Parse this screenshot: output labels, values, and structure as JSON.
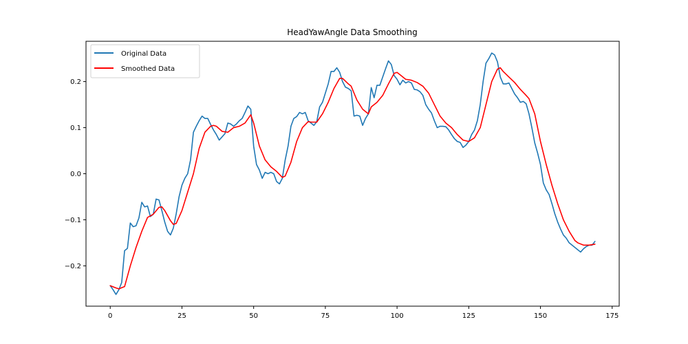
{
  "chart_data": {
    "type": "line",
    "title": "HeadYawAngle Data Smoothing",
    "xlabel": "",
    "ylabel": "",
    "xlim": [
      -8.45,
      177.45
    ],
    "ylim": [
      -0.2875,
      0.2875
    ],
    "xticks": [
      0,
      25,
      50,
      75,
      100,
      125,
      150,
      175
    ],
    "xtick_labels": [
      "0",
      "25",
      "50",
      "75",
      "100",
      "125",
      "150",
      "175"
    ],
    "yticks": [
      -0.2,
      -0.1,
      0.0,
      0.1,
      0.2
    ],
    "ytick_labels": [
      "−0.2",
      "−0.1",
      "0.0",
      "0.1",
      "0.2"
    ],
    "grid": false,
    "legend_position": "top-left",
    "series": [
      {
        "name": "Original Data",
        "color": "#1f77b4",
        "keypoints": [
          [
            0,
            -0.243
          ],
          [
            1,
            -0.252
          ],
          [
            2,
            -0.262
          ],
          [
            3,
            -0.252
          ],
          [
            4,
            -0.236
          ],
          [
            5,
            -0.167
          ],
          [
            6,
            -0.162
          ],
          [
            7,
            -0.107
          ],
          [
            8,
            -0.115
          ],
          [
            9,
            -0.113
          ],
          [
            10,
            -0.096
          ],
          [
            11,
            -0.062
          ],
          [
            12,
            -0.072
          ],
          [
            13,
            -0.07
          ],
          [
            14,
            -0.093
          ],
          [
            15,
            -0.088
          ],
          [
            16,
            -0.055
          ],
          [
            17,
            -0.057
          ],
          [
            18,
            -0.08
          ],
          [
            19,
            -0.105
          ],
          [
            20,
            -0.125
          ],
          [
            21,
            -0.133
          ],
          [
            22,
            -0.118
          ],
          [
            23,
            -0.087
          ],
          [
            24,
            -0.05
          ],
          [
            25,
            -0.025
          ],
          [
            26,
            -0.01
          ],
          [
            27,
            0.0
          ],
          [
            28,
            0.03
          ],
          [
            29,
            0.09
          ],
          [
            30,
            0.103
          ],
          [
            31,
            0.115
          ],
          [
            32,
            0.125
          ],
          [
            33,
            0.12
          ],
          [
            34,
            0.12
          ],
          [
            35,
            0.107
          ],
          [
            36,
            0.095
          ],
          [
            37,
            0.085
          ],
          [
            38,
            0.073
          ],
          [
            39,
            0.08
          ],
          [
            40,
            0.087
          ],
          [
            41,
            0.11
          ],
          [
            42,
            0.108
          ],
          [
            43,
            0.103
          ],
          [
            44,
            0.108
          ],
          [
            45,
            0.115
          ],
          [
            46,
            0.12
          ],
          [
            47,
            0.133
          ],
          [
            48,
            0.147
          ],
          [
            49,
            0.14
          ],
          [
            50,
            0.06
          ],
          [
            51,
            0.02
          ],
          [
            52,
            0.008
          ],
          [
            53,
            -0.01
          ],
          [
            54,
            0.003
          ],
          [
            55,
            0.0
          ],
          [
            56,
            0.003
          ],
          [
            57,
            0.0
          ],
          [
            58,
            -0.017
          ],
          [
            59,
            -0.022
          ],
          [
            60,
            -0.01
          ],
          [
            61,
            0.03
          ],
          [
            62,
            0.06
          ],
          [
            63,
            0.103
          ],
          [
            64,
            0.12
          ],
          [
            65,
            0.124
          ],
          [
            66,
            0.133
          ],
          [
            67,
            0.13
          ],
          [
            68,
            0.133
          ],
          [
            69,
            0.115
          ],
          [
            70,
            0.11
          ],
          [
            71,
            0.105
          ],
          [
            72,
            0.113
          ],
          [
            73,
            0.145
          ],
          [
            74,
            0.155
          ],
          [
            75,
            0.175
          ],
          [
            76,
            0.195
          ],
          [
            77,
            0.222
          ],
          [
            78,
            0.222
          ],
          [
            79,
            0.23
          ],
          [
            80,
            0.22
          ],
          [
            81,
            0.2
          ],
          [
            82,
            0.188
          ],
          [
            83,
            0.185
          ],
          [
            84,
            0.18
          ],
          [
            85,
            0.125
          ],
          [
            86,
            0.127
          ],
          [
            87,
            0.125
          ],
          [
            88,
            0.105
          ],
          [
            89,
            0.12
          ],
          [
            90,
            0.13
          ],
          [
            91,
            0.187
          ],
          [
            92,
            0.165
          ],
          [
            93,
            0.192
          ],
          [
            94,
            0.192
          ],
          [
            95,
            0.21
          ],
          [
            96,
            0.228
          ],
          [
            97,
            0.245
          ],
          [
            98,
            0.237
          ],
          [
            99,
            0.213
          ],
          [
            100,
            0.205
          ],
          [
            101,
            0.193
          ],
          [
            102,
            0.203
          ],
          [
            103,
            0.197
          ],
          [
            104,
            0.2
          ],
          [
            105,
            0.197
          ],
          [
            106,
            0.183
          ],
          [
            107,
            0.182
          ],
          [
            108,
            0.178
          ],
          [
            109,
            0.17
          ],
          [
            110,
            0.15
          ],
          [
            111,
            0.14
          ],
          [
            112,
            0.132
          ],
          [
            113,
            0.115
          ],
          [
            114,
            0.1
          ],
          [
            115,
            0.103
          ],
          [
            116,
            0.103
          ],
          [
            117,
            0.102
          ],
          [
            118,
            0.095
          ],
          [
            119,
            0.085
          ],
          [
            120,
            0.076
          ],
          [
            121,
            0.07
          ],
          [
            122,
            0.068
          ],
          [
            123,
            0.057
          ],
          [
            124,
            0.062
          ],
          [
            125,
            0.07
          ],
          [
            126,
            0.085
          ],
          [
            127,
            0.095
          ],
          [
            128,
            0.115
          ],
          [
            129,
            0.15
          ],
          [
            130,
            0.2
          ],
          [
            131,
            0.24
          ],
          [
            132,
            0.25
          ],
          [
            133,
            0.262
          ],
          [
            134,
            0.258
          ],
          [
            135,
            0.243
          ],
          [
            136,
            0.21
          ],
          [
            137,
            0.195
          ],
          [
            138,
            0.195
          ],
          [
            139,
            0.197
          ],
          [
            140,
            0.185
          ],
          [
            141,
            0.173
          ],
          [
            142,
            0.165
          ],
          [
            143,
            0.155
          ],
          [
            144,
            0.157
          ],
          [
            145,
            0.152
          ],
          [
            146,
            0.13
          ],
          [
            147,
            0.1
          ],
          [
            148,
            0.067
          ],
          [
            149,
            0.045
          ],
          [
            150,
            0.02
          ],
          [
            151,
            -0.02
          ],
          [
            152,
            -0.035
          ],
          [
            153,
            -0.045
          ],
          [
            154,
            -0.065
          ],
          [
            155,
            -0.087
          ],
          [
            156,
            -0.105
          ],
          [
            157,
            -0.12
          ],
          [
            158,
            -0.133
          ],
          [
            159,
            -0.14
          ],
          [
            160,
            -0.15
          ],
          [
            161,
            -0.155
          ],
          [
            162,
            -0.16
          ],
          [
            163,
            -0.165
          ],
          [
            164,
            -0.17
          ],
          [
            165,
            -0.163
          ],
          [
            166,
            -0.158
          ],
          [
            167,
            -0.155
          ],
          [
            168,
            -0.155
          ],
          [
            169,
            -0.147
          ]
        ]
      },
      {
        "name": "Smoothed Data",
        "color": "#ff0000",
        "keypoints": [
          [
            0,
            -0.243
          ],
          [
            2,
            -0.248
          ],
          [
            3,
            -0.25
          ],
          [
            5,
            -0.245
          ],
          [
            7,
            -0.2
          ],
          [
            9,
            -0.16
          ],
          [
            11,
            -0.125
          ],
          [
            13,
            -0.095
          ],
          [
            15,
            -0.088
          ],
          [
            17,
            -0.073
          ],
          [
            18,
            -0.072
          ],
          [
            19,
            -0.08
          ],
          [
            21,
            -0.102
          ],
          [
            22,
            -0.11
          ],
          [
            23,
            -0.108
          ],
          [
            25,
            -0.08
          ],
          [
            27,
            -0.04
          ],
          [
            29,
            0.0
          ],
          [
            31,
            0.055
          ],
          [
            33,
            0.09
          ],
          [
            35,
            0.103
          ],
          [
            36,
            0.105
          ],
          [
            37,
            0.103
          ],
          [
            39,
            0.092
          ],
          [
            41,
            0.09
          ],
          [
            43,
            0.1
          ],
          [
            45,
            0.103
          ],
          [
            47,
            0.11
          ],
          [
            49,
            0.128
          ],
          [
            50,
            0.11
          ],
          [
            52,
            0.06
          ],
          [
            54,
            0.03
          ],
          [
            56,
            0.015
          ],
          [
            58,
            0.005
          ],
          [
            60,
            -0.008
          ],
          [
            61,
            -0.005
          ],
          [
            63,
            0.025
          ],
          [
            65,
            0.07
          ],
          [
            67,
            0.1
          ],
          [
            69,
            0.113
          ],
          [
            70,
            0.112
          ],
          [
            72,
            0.112
          ],
          [
            74,
            0.13
          ],
          [
            76,
            0.155
          ],
          [
            78,
            0.185
          ],
          [
            80,
            0.207
          ],
          [
            81,
            0.207
          ],
          [
            83,
            0.195
          ],
          [
            84,
            0.19
          ],
          [
            86,
            0.16
          ],
          [
            88,
            0.14
          ],
          [
            90,
            0.13
          ],
          [
            91,
            0.145
          ],
          [
            93,
            0.155
          ],
          [
            95,
            0.17
          ],
          [
            97,
            0.195
          ],
          [
            99,
            0.218
          ],
          [
            100,
            0.22
          ],
          [
            101,
            0.215
          ],
          [
            103,
            0.205
          ],
          [
            105,
            0.203
          ],
          [
            107,
            0.198
          ],
          [
            109,
            0.19
          ],
          [
            111,
            0.175
          ],
          [
            113,
            0.15
          ],
          [
            115,
            0.125
          ],
          [
            117,
            0.11
          ],
          [
            119,
            0.1
          ],
          [
            121,
            0.085
          ],
          [
            123,
            0.073
          ],
          [
            125,
            0.07
          ],
          [
            127,
            0.078
          ],
          [
            129,
            0.1
          ],
          [
            131,
            0.15
          ],
          [
            133,
            0.2
          ],
          [
            135,
            0.227
          ],
          [
            136,
            0.23
          ],
          [
            137,
            0.222
          ],
          [
            139,
            0.21
          ],
          [
            141,
            0.198
          ],
          [
            143,
            0.183
          ],
          [
            145,
            0.17
          ],
          [
            146,
            0.163
          ],
          [
            148,
            0.13
          ],
          [
            150,
            0.07
          ],
          [
            152,
            0.02
          ],
          [
            154,
            -0.025
          ],
          [
            156,
            -0.065
          ],
          [
            158,
            -0.1
          ],
          [
            160,
            -0.125
          ],
          [
            162,
            -0.145
          ],
          [
            163,
            -0.15
          ],
          [
            165,
            -0.155
          ],
          [
            167,
            -0.155
          ],
          [
            169,
            -0.153
          ]
        ]
      }
    ]
  }
}
